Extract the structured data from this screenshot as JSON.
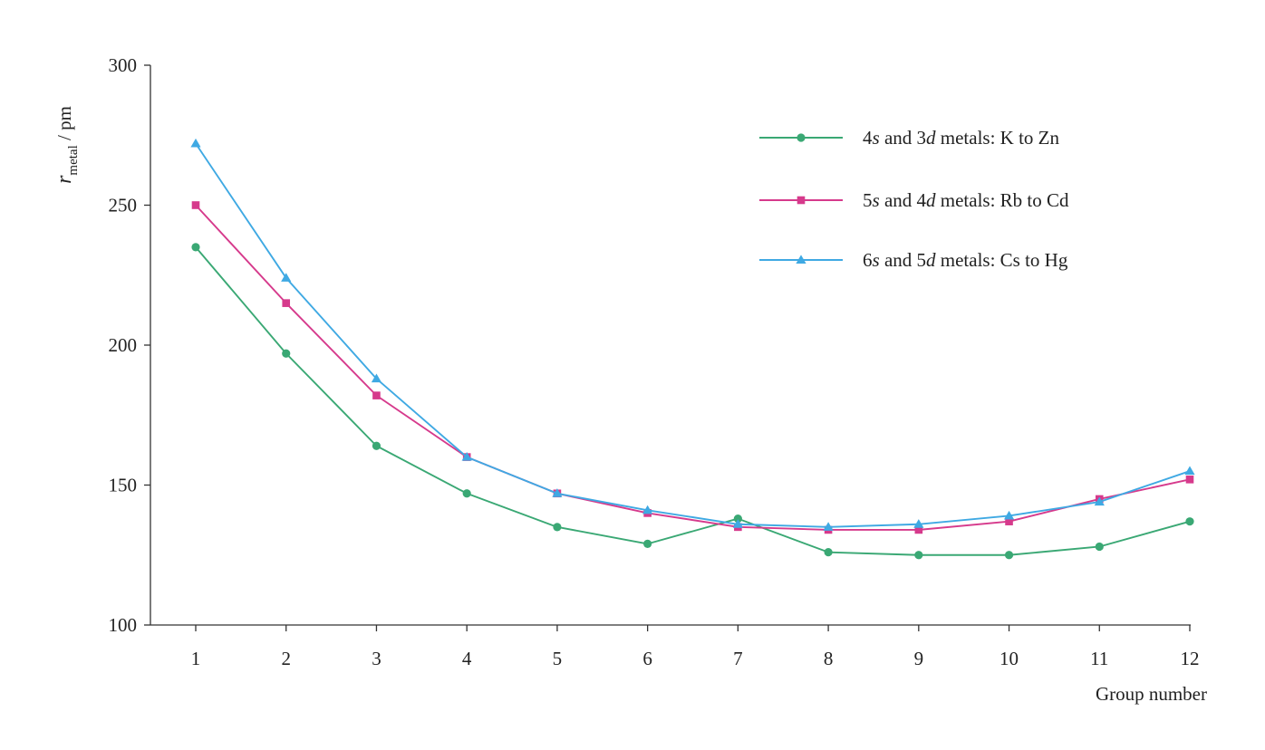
{
  "chart_data": {
    "type": "line",
    "xlabel": "Group number",
    "ylabel": {
      "var": "r",
      "sub": "metal",
      "unit": " / pm"
    },
    "xlim": [
      1,
      12
    ],
    "ylim": [
      100,
      300
    ],
    "x": [
      1,
      2,
      3,
      4,
      5,
      6,
      7,
      8,
      9,
      10,
      11,
      12
    ],
    "yticks": [
      100,
      150,
      200,
      250,
      300
    ],
    "grid": false,
    "legend_position": "top-right",
    "series": [
      {
        "name": "4s and 3d metals: K to Zn",
        "legend_parts": [
          {
            "t": "4",
            "i": false
          },
          {
            "t": "s",
            "i": true
          },
          {
            "t": " and 3",
            "i": false
          },
          {
            "t": "d",
            "i": true
          },
          {
            "t": " metals: K to Zn",
            "i": false
          }
        ],
        "color": "#3aa874",
        "marker": "circle",
        "values": [
          235,
          197,
          164,
          147,
          135,
          129,
          138,
          126,
          125,
          125,
          128,
          137
        ]
      },
      {
        "name": "5s and 4d metals: Rb to Cd",
        "legend_parts": [
          {
            "t": "5",
            "i": false
          },
          {
            "t": "s",
            "i": true
          },
          {
            "t": " and 4",
            "i": false
          },
          {
            "t": "d",
            "i": true
          },
          {
            "t": " metals: Rb to Cd",
            "i": false
          }
        ],
        "color": "#d63a8c",
        "marker": "square",
        "values": [
          250,
          215,
          182,
          160,
          147,
          140,
          135,
          134,
          134,
          137,
          145,
          152
        ]
      },
      {
        "name": "6s and 5d metals: Cs to Hg",
        "legend_parts": [
          {
            "t": "6",
            "i": false
          },
          {
            "t": "s",
            "i": true
          },
          {
            "t": " and 5",
            "i": false
          },
          {
            "t": "d",
            "i": true
          },
          {
            "t": " metals: Cs to Hg",
            "i": false
          }
        ],
        "color": "#3fa9e3",
        "marker": "triangle",
        "values": [
          272,
          224,
          188,
          160,
          147,
          141,
          136,
          135,
          136,
          139,
          144,
          155
        ]
      }
    ]
  }
}
